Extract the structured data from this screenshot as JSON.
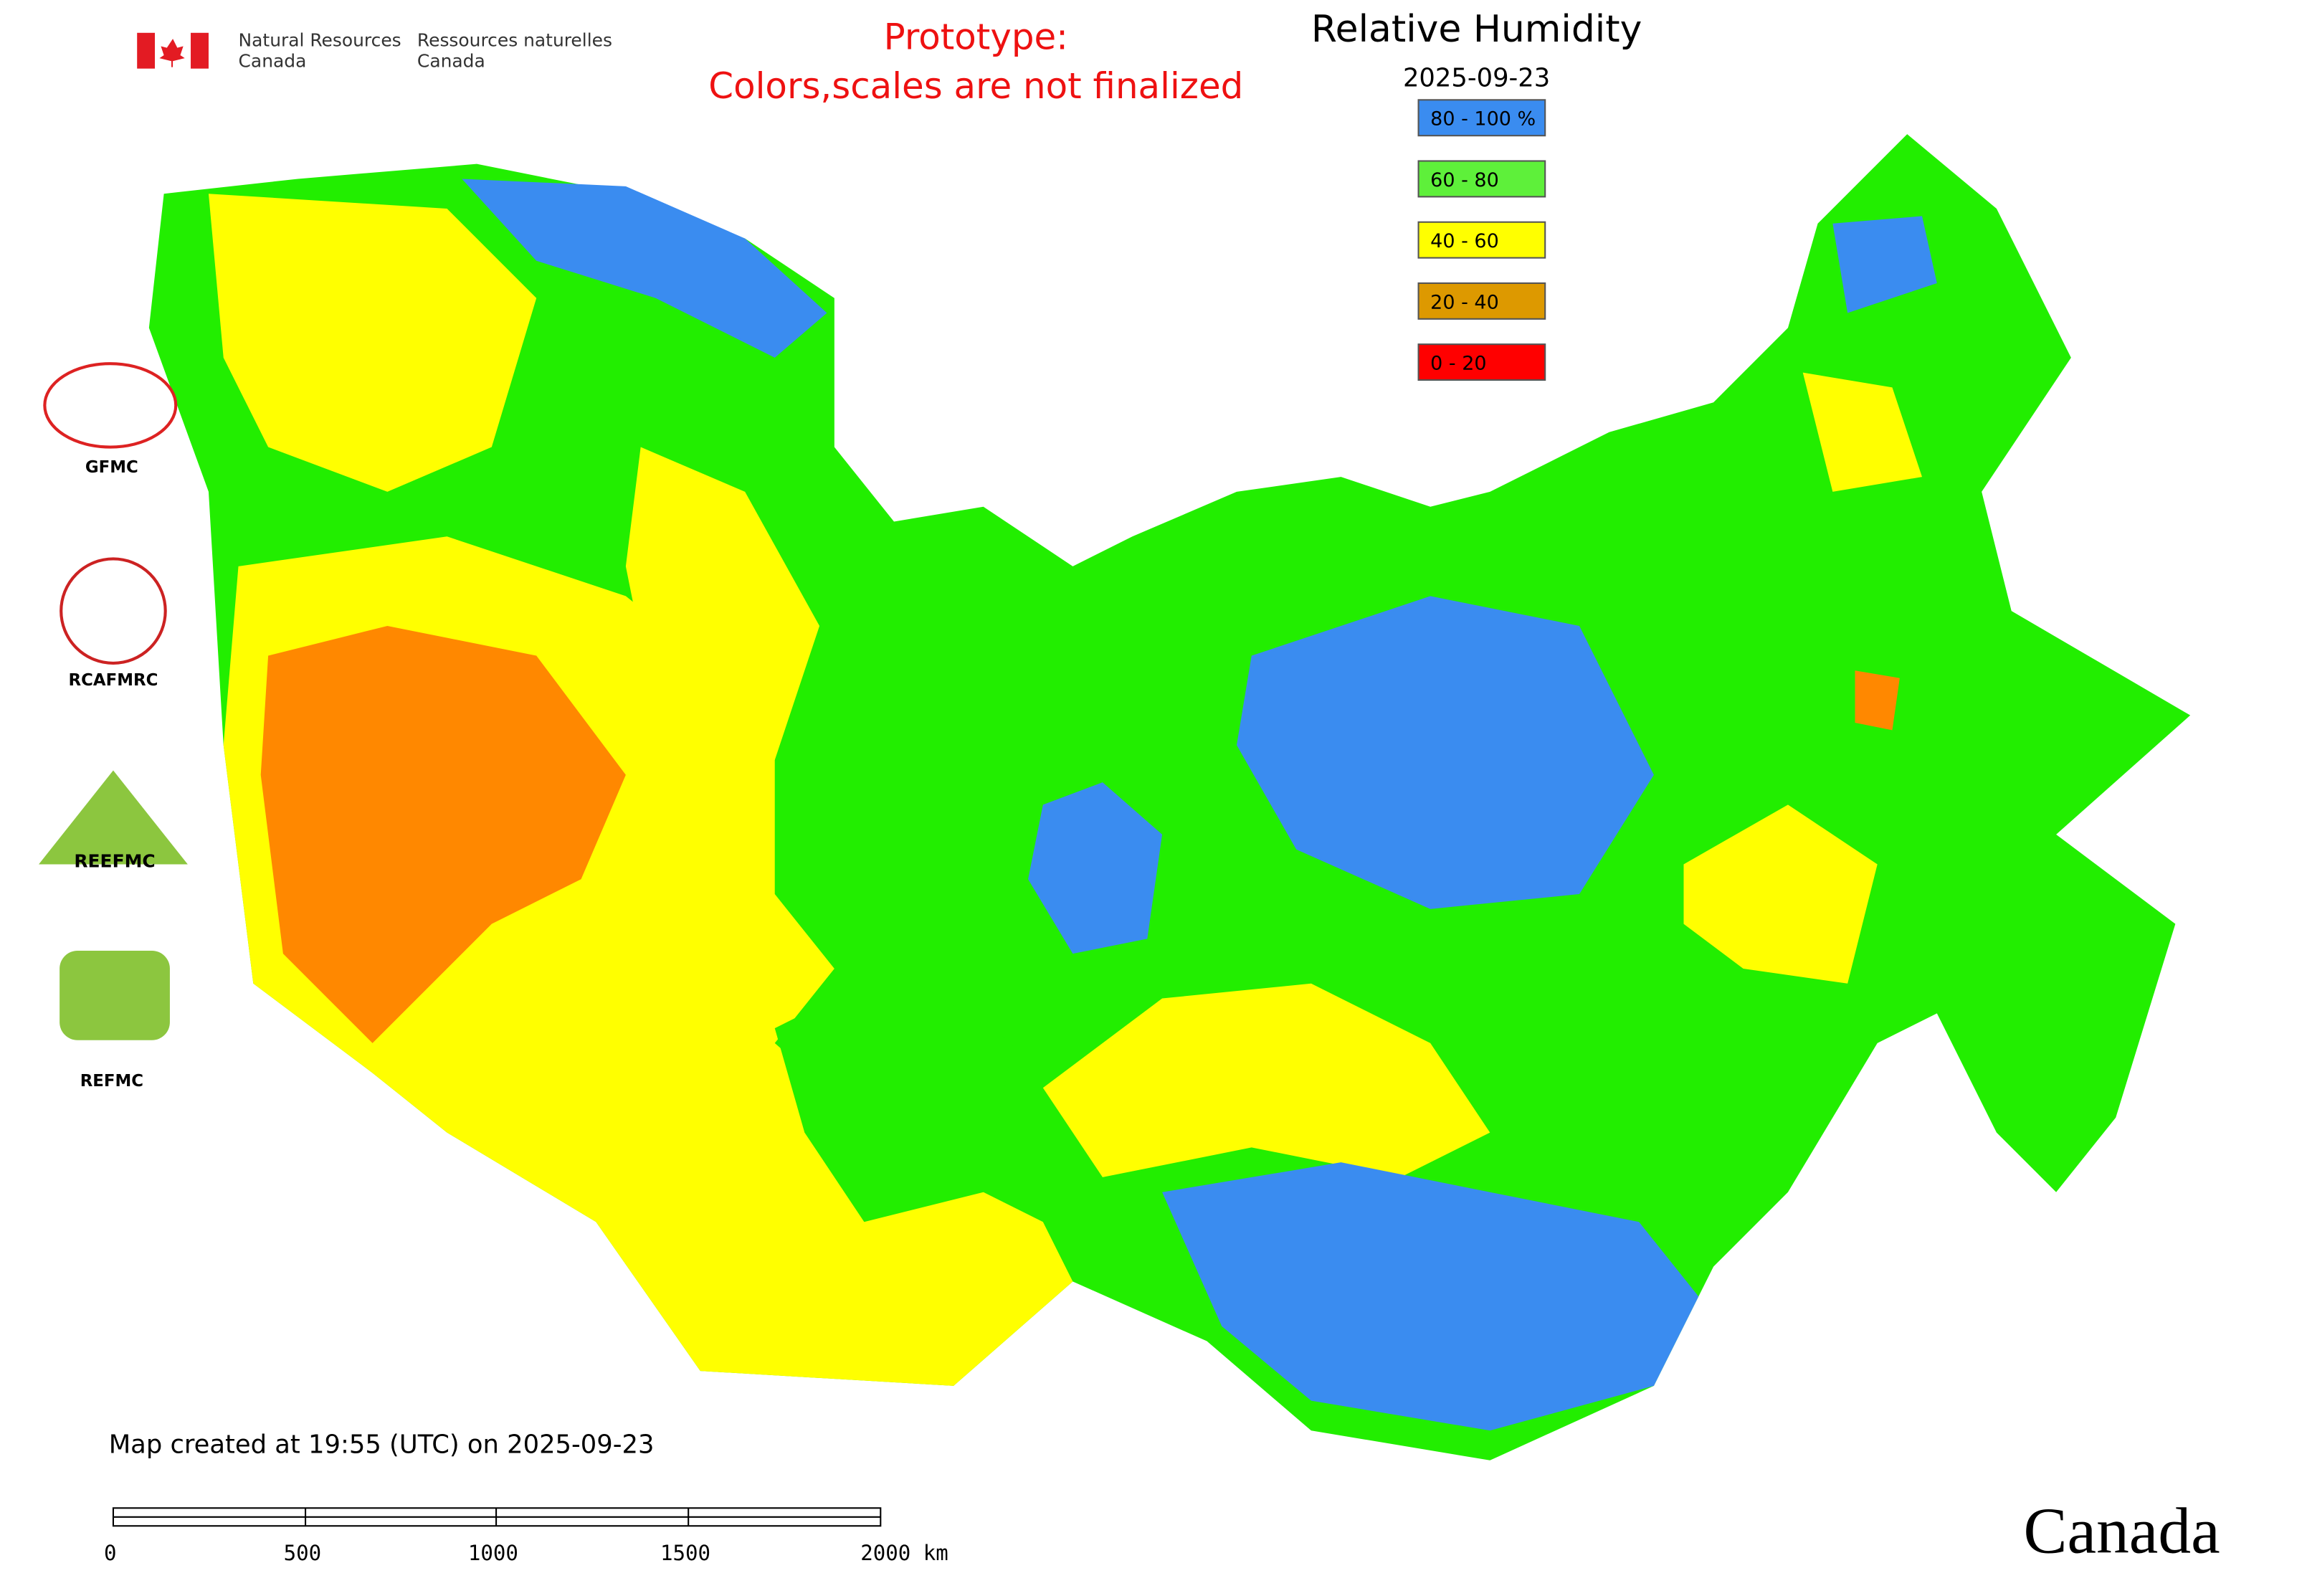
{
  "header": {
    "org_en": [
      "Natural Resources",
      "Canada"
    ],
    "org_fr": [
      "Ressources naturelles",
      "Canada"
    ],
    "notice": [
      "Prototype:",
      "Colors,scales are not finalized"
    ],
    "title": "Relative Humidity",
    "date": "2025-09-23"
  },
  "legend": [
    {
      "label": "80 - 100 %",
      "color": "#3a8cf0"
    },
    {
      "label": "60 - 80",
      "color": "#5ef03a"
    },
    {
      "label": "40 - 60",
      "color": "#ffff00"
    },
    {
      "label": "20 - 40",
      "color": "#dd9900"
    },
    {
      "label": "0 - 20",
      "color": "#ff0000"
    }
  ],
  "logos": [
    "GFMC",
    "RCAFMRC",
    "REEFMC",
    "REFMC"
  ],
  "footer": {
    "created": "Map created at 19:55 (UTC) on 2025-09-23",
    "scale_labels": [
      "0",
      "500",
      "1000",
      "1500",
      "2000 km"
    ],
    "wordmark": "Canada"
  }
}
